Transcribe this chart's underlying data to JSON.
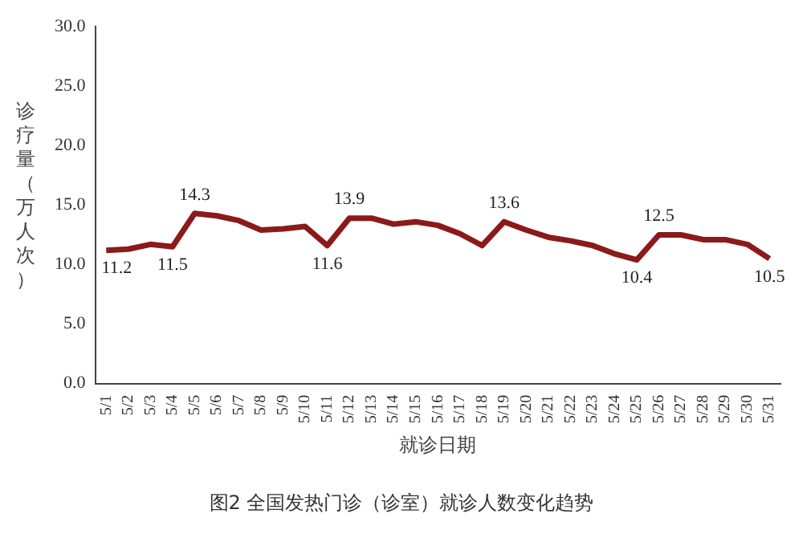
{
  "chart_data": {
    "type": "line",
    "xlabel": "就诊日期",
    "ylabel": "诊疗量（万人次）",
    "annotations": [
      "图2 全国发热门诊（诊室）就诊人数变化趋势"
    ],
    "categories": [
      "5/1",
      "5/2",
      "5/3",
      "5/4",
      "5/5",
      "5/6",
      "5/7",
      "5/8",
      "5/9",
      "5/10",
      "5/11",
      "5/12",
      "5/13",
      "5/14",
      "5/15",
      "5/16",
      "5/17",
      "5/18",
      "5/19",
      "5/20",
      "5/21",
      "5/22",
      "5/23",
      "5/24",
      "5/25",
      "5/26",
      "5/27",
      "5/28",
      "5/29",
      "5/30",
      "5/31"
    ],
    "series": [
      {
        "color": "#8b1a1a",
        "values": [
          11.2,
          11.3,
          11.7,
          11.5,
          14.3,
          14.1,
          13.7,
          12.9,
          13.0,
          13.2,
          11.6,
          13.9,
          13.9,
          13.4,
          13.6,
          13.3,
          12.6,
          11.6,
          13.6,
          12.9,
          12.3,
          12.0,
          11.6,
          10.9,
          10.4,
          12.5,
          12.5,
          12.1,
          12.1,
          11.7,
          10.5
        ],
        "value_labels": [
          "11.2",
          null,
          null,
          "11.5",
          "14.3",
          null,
          null,
          null,
          null,
          null,
          "11.6",
          "13.9",
          null,
          null,
          null,
          null,
          null,
          null,
          "13.6",
          null,
          null,
          null,
          null,
          null,
          "10.4",
          "12.5",
          null,
          null,
          null,
          null,
          "10.5"
        ]
      }
    ],
    "ylim": [
      0,
      30
    ],
    "yticks": [
      {
        "value": 0,
        "label": "0.0"
      },
      {
        "value": 5,
        "label": "5.0"
      },
      {
        "value": 10,
        "label": "10.0"
      },
      {
        "value": 15,
        "label": "15.0"
      },
      {
        "value": 20,
        "label": "20.0"
      },
      {
        "value": 25,
        "label": "25.0"
      },
      {
        "value": 30,
        "label": "30.0"
      }
    ],
    "grid": false,
    "legend": false,
    "marker": "none",
    "line_style": "solid"
  }
}
